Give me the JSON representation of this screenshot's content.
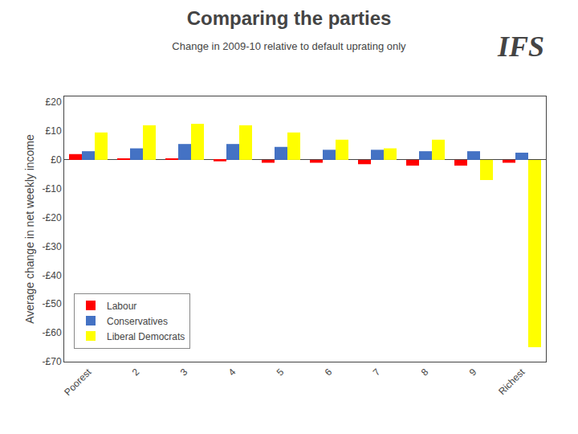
{
  "chart_data": {
    "type": "bar",
    "title": "Comparing the parties",
    "subtitle": "Change in 2009-10 relative to default uprating only",
    "ylabel": "Average change in net weekly income",
    "annotations": [
      "IFS"
    ],
    "categories": [
      "Poorest",
      "2",
      "3",
      "4",
      "5",
      "6",
      "7",
      "8",
      "9",
      "Richest"
    ],
    "series": [
      {
        "name": "Labour",
        "color": "#ff0000",
        "values": [
          2.0,
          0.5,
          0.5,
          -0.5,
          -1.0,
          -1.0,
          -1.5,
          -2.0,
          -2.0,
          -1.0
        ]
      },
      {
        "name": "Conservatives",
        "color": "#4472c4",
        "values": [
          3.0,
          4.0,
          5.5,
          5.5,
          4.5,
          3.5,
          3.5,
          3.0,
          3.0,
          2.5
        ]
      },
      {
        "name": "Liberal Democrats",
        "color": "#ffff00",
        "values": [
          9.5,
          12.0,
          12.5,
          12.0,
          9.5,
          7.0,
          4.0,
          7.0,
          -7.0,
          -65.0
        ]
      }
    ],
    "ylim": [
      -70,
      22
    ],
    "yticks": [
      {
        "value": 20,
        "label": "£20"
      },
      {
        "value": 10,
        "label": "£10"
      },
      {
        "value": 0,
        "label": "£0"
      },
      {
        "value": -10,
        "label": "-£10"
      },
      {
        "value": -20,
        "label": "-£20"
      },
      {
        "value": -30,
        "label": "-£30"
      },
      {
        "value": -40,
        "label": "-£40"
      },
      {
        "value": -50,
        "label": "-£50"
      },
      {
        "value": -60,
        "label": "-£60"
      },
      {
        "value": -70,
        "label": "-£70"
      }
    ],
    "grid": false,
    "legend": "lower left"
  }
}
